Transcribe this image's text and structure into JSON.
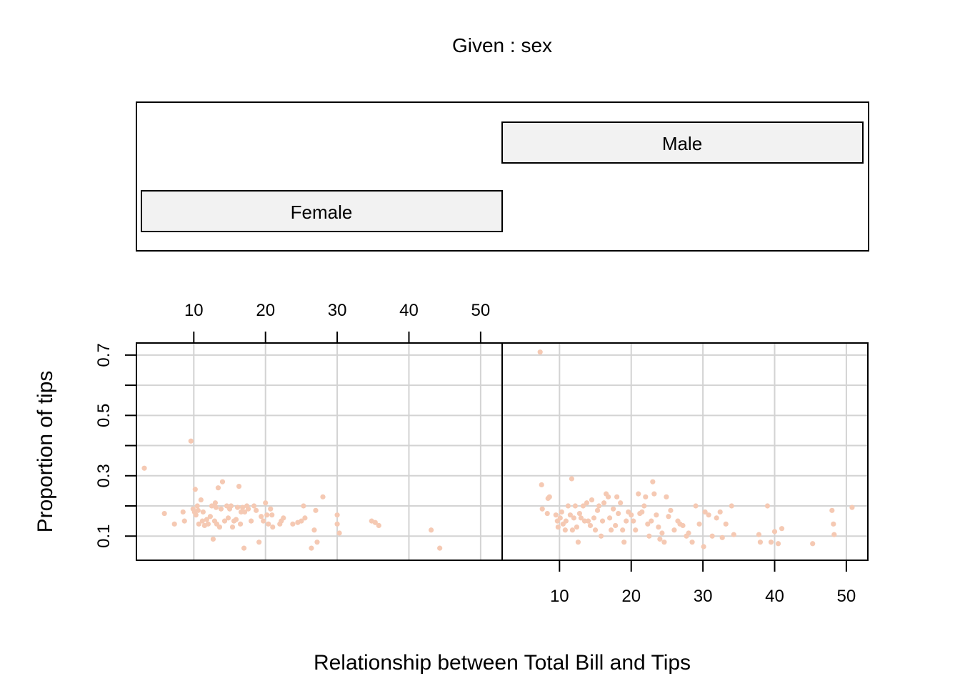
{
  "chart_data": {
    "type": "scatter",
    "given_label": "Given : sex",
    "xlabel": "Relationship between Total Bill and Tips",
    "ylabel": "Proportion of tips",
    "xlim": [
      2,
      53
    ],
    "ylim": [
      0.02,
      0.74
    ],
    "x_ticks": [
      "10",
      "20",
      "30",
      "40",
      "50"
    ],
    "y_ticks": [
      "0.1",
      "0.3",
      "0.5",
      "0.7"
    ],
    "y_minor_ticks": [
      0.2,
      0.4,
      0.6
    ],
    "grid": true,
    "point_color": "#f5c9b3",
    "panels": [
      {
        "name": "Female",
        "points": [
          [
            3.1,
            0.325
          ],
          [
            5.9,
            0.175
          ],
          [
            7.3,
            0.14
          ],
          [
            8.5,
            0.18
          ],
          [
            8.7,
            0.15
          ],
          [
            9.6,
            0.415
          ],
          [
            9.9,
            0.19
          ],
          [
            10.1,
            0.18
          ],
          [
            10.2,
            0.255
          ],
          [
            10.3,
            0.17
          ],
          [
            10.5,
            0.2
          ],
          [
            10.6,
            0.185
          ],
          [
            10.7,
            0.14
          ],
          [
            11.0,
            0.22
          ],
          [
            11.2,
            0.15
          ],
          [
            11.3,
            0.18
          ],
          [
            11.5,
            0.135
          ],
          [
            11.8,
            0.155
          ],
          [
            12.0,
            0.14
          ],
          [
            12.3,
            0.165
          ],
          [
            12.5,
            0.2
          ],
          [
            12.7,
            0.09
          ],
          [
            12.9,
            0.15
          ],
          [
            13.0,
            0.21
          ],
          [
            13.1,
            0.195
          ],
          [
            13.2,
            0.14
          ],
          [
            13.4,
            0.26
          ],
          [
            13.6,
            0.13
          ],
          [
            13.8,
            0.19
          ],
          [
            14.0,
            0.28
          ],
          [
            14.3,
            0.15
          ],
          [
            14.6,
            0.2
          ],
          [
            14.8,
            0.16
          ],
          [
            15.0,
            0.19
          ],
          [
            15.2,
            0.2
          ],
          [
            15.4,
            0.13
          ],
          [
            15.6,
            0.15
          ],
          [
            15.9,
            0.155
          ],
          [
            16.1,
            0.195
          ],
          [
            16.3,
            0.265
          ],
          [
            16.5,
            0.14
          ],
          [
            16.6,
            0.18
          ],
          [
            16.8,
            0.195
          ],
          [
            17.0,
            0.06
          ],
          [
            17.1,
            0.18
          ],
          [
            17.4,
            0.2
          ],
          [
            17.6,
            0.19
          ],
          [
            18.0,
            0.15
          ],
          [
            18.4,
            0.2
          ],
          [
            18.7,
            0.185
          ],
          [
            19.1,
            0.08
          ],
          [
            19.4,
            0.165
          ],
          [
            19.7,
            0.15
          ],
          [
            20.0,
            0.21
          ],
          [
            20.2,
            0.17
          ],
          [
            20.4,
            0.14
          ],
          [
            20.7,
            0.19
          ],
          [
            20.9,
            0.17
          ],
          [
            21.0,
            0.13
          ],
          [
            22.0,
            0.14
          ],
          [
            22.2,
            0.15
          ],
          [
            22.5,
            0.16
          ],
          [
            23.8,
            0.14
          ],
          [
            24.5,
            0.145
          ],
          [
            25.0,
            0.15
          ],
          [
            25.3,
            0.2
          ],
          [
            25.5,
            0.16
          ],
          [
            26.4,
            0.06
          ],
          [
            26.8,
            0.12
          ],
          [
            27.0,
            0.185
          ],
          [
            27.2,
            0.08
          ],
          [
            28.0,
            0.23
          ],
          [
            30.0,
            0.17
          ],
          [
            30.0,
            0.14
          ],
          [
            30.3,
            0.11
          ],
          [
            34.8,
            0.15
          ],
          [
            35.3,
            0.145
          ],
          [
            35.8,
            0.135
          ],
          [
            43.1,
            0.12
          ],
          [
            44.3,
            0.06
          ]
        ]
      },
      {
        "name": "Male",
        "points": [
          [
            7.3,
            0.71
          ],
          [
            7.5,
            0.27
          ],
          [
            7.6,
            0.19
          ],
          [
            8.3,
            0.175
          ],
          [
            8.4,
            0.225
          ],
          [
            8.6,
            0.23
          ],
          [
            9.5,
            0.17
          ],
          [
            9.7,
            0.15
          ],
          [
            9.8,
            0.13
          ],
          [
            10.1,
            0.16
          ],
          [
            10.3,
            0.18
          ],
          [
            10.5,
            0.14
          ],
          [
            10.8,
            0.12
          ],
          [
            10.9,
            0.15
          ],
          [
            11.2,
            0.2
          ],
          [
            11.5,
            0.17
          ],
          [
            11.7,
            0.29
          ],
          [
            11.8,
            0.12
          ],
          [
            12.0,
            0.16
          ],
          [
            12.2,
            0.2
          ],
          [
            12.4,
            0.13
          ],
          [
            12.6,
            0.08
          ],
          [
            12.8,
            0.175
          ],
          [
            13.0,
            0.16
          ],
          [
            13.3,
            0.2
          ],
          [
            13.5,
            0.15
          ],
          [
            13.8,
            0.21
          ],
          [
            14.0,
            0.15
          ],
          [
            14.3,
            0.135
          ],
          [
            14.5,
            0.22
          ],
          [
            14.8,
            0.16
          ],
          [
            15.0,
            0.12
          ],
          [
            15.3,
            0.185
          ],
          [
            15.5,
            0.2
          ],
          [
            15.8,
            0.1
          ],
          [
            16.0,
            0.15
          ],
          [
            16.2,
            0.21
          ],
          [
            16.5,
            0.24
          ],
          [
            16.8,
            0.23
          ],
          [
            17.0,
            0.16
          ],
          [
            17.2,
            0.12
          ],
          [
            17.5,
            0.19
          ],
          [
            17.8,
            0.135
          ],
          [
            18.0,
            0.23
          ],
          [
            18.2,
            0.175
          ],
          [
            18.5,
            0.21
          ],
          [
            18.8,
            0.12
          ],
          [
            19.0,
            0.08
          ],
          [
            19.3,
            0.15
          ],
          [
            19.6,
            0.18
          ],
          [
            20.0,
            0.17
          ],
          [
            20.3,
            0.15
          ],
          [
            20.6,
            0.12
          ],
          [
            21.0,
            0.24
          ],
          [
            21.2,
            0.175
          ],
          [
            21.5,
            0.18
          ],
          [
            21.8,
            0.2
          ],
          [
            22.0,
            0.23
          ],
          [
            22.3,
            0.14
          ],
          [
            22.5,
            0.1
          ],
          [
            22.8,
            0.15
          ],
          [
            23.0,
            0.28
          ],
          [
            23.2,
            0.24
          ],
          [
            23.5,
            0.17
          ],
          [
            23.8,
            0.13
          ],
          [
            24.0,
            0.09
          ],
          [
            24.3,
            0.11
          ],
          [
            24.6,
            0.08
          ],
          [
            24.9,
            0.23
          ],
          [
            25.2,
            0.165
          ],
          [
            25.5,
            0.185
          ],
          [
            26.0,
            0.12
          ],
          [
            26.5,
            0.15
          ],
          [
            26.8,
            0.14
          ],
          [
            27.2,
            0.135
          ],
          [
            27.7,
            0.1
          ],
          [
            28.0,
            0.11
          ],
          [
            28.5,
            0.08
          ],
          [
            29.0,
            0.2
          ],
          [
            29.5,
            0.14
          ],
          [
            30.1,
            0.065
          ],
          [
            30.3,
            0.18
          ],
          [
            30.8,
            0.17
          ],
          [
            31.3,
            0.1
          ],
          [
            31.9,
            0.16
          ],
          [
            32.4,
            0.18
          ],
          [
            32.7,
            0.095
          ],
          [
            33.2,
            0.14
          ],
          [
            34.0,
            0.2
          ],
          [
            34.3,
            0.105
          ],
          [
            37.8,
            0.105
          ],
          [
            38.0,
            0.08
          ],
          [
            39.0,
            0.2
          ],
          [
            39.5,
            0.08
          ],
          [
            40.0,
            0.115
          ],
          [
            40.5,
            0.075
          ],
          [
            41.0,
            0.125
          ],
          [
            45.3,
            0.075
          ],
          [
            48.0,
            0.185
          ],
          [
            48.2,
            0.14
          ],
          [
            48.3,
            0.105
          ],
          [
            50.8,
            0.195
          ]
        ]
      }
    ]
  }
}
